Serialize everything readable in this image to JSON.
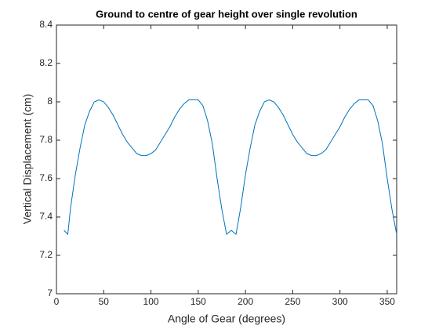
{
  "chart_data": {
    "type": "line",
    "title": "Ground to centre of gear height over single revolution",
    "xlabel": "Angle of Gear (degrees)",
    "ylabel": "Vertical Displacement (cm)",
    "color": "#0072bd",
    "x": [
      8,
      12,
      15,
      20,
      25,
      30,
      35,
      40,
      45,
      50,
      55,
      60,
      65,
      70,
      75,
      80,
      85,
      90,
      95,
      100,
      105,
      110,
      115,
      120,
      125,
      130,
      135,
      140,
      145,
      150,
      155,
      160,
      165,
      170,
      175,
      180,
      185,
      190,
      195,
      200,
      205,
      210,
      215,
      220,
      225,
      230,
      235,
      240,
      245,
      250,
      255,
      260,
      265,
      270,
      275,
      280,
      285,
      290,
      295,
      300,
      305,
      310,
      315,
      320,
      325,
      330,
      335,
      340,
      345,
      350,
      355,
      360
    ],
    "values": [
      7.33,
      7.31,
      7.45,
      7.62,
      7.76,
      7.88,
      7.95,
      8.0,
      8.01,
      8.0,
      7.97,
      7.93,
      7.88,
      7.83,
      7.79,
      7.76,
      7.73,
      7.72,
      7.72,
      7.73,
      7.75,
      7.79,
      7.83,
      7.87,
      7.92,
      7.96,
      7.99,
      8.01,
      8.01,
      8.01,
      7.98,
      7.9,
      7.78,
      7.6,
      7.44,
      7.31,
      7.33,
      7.31,
      7.45,
      7.62,
      7.76,
      7.88,
      7.95,
      8.0,
      8.01,
      8.0,
      7.97,
      7.93,
      7.88,
      7.83,
      7.79,
      7.76,
      7.73,
      7.72,
      7.72,
      7.73,
      7.75,
      7.79,
      7.83,
      7.87,
      7.92,
      7.96,
      7.99,
      8.01,
      8.01,
      8.01,
      7.98,
      7.9,
      7.78,
      7.6,
      7.44,
      7.31
    ],
    "xlim": [
      0,
      360
    ],
    "xticks": [
      0,
      50,
      100,
      150,
      200,
      250,
      300,
      350
    ],
    "ylim": [
      7,
      8.4
    ],
    "yticks": [
      7,
      7.2,
      7.4,
      7.6,
      7.8,
      8,
      8.2,
      8.4
    ]
  }
}
